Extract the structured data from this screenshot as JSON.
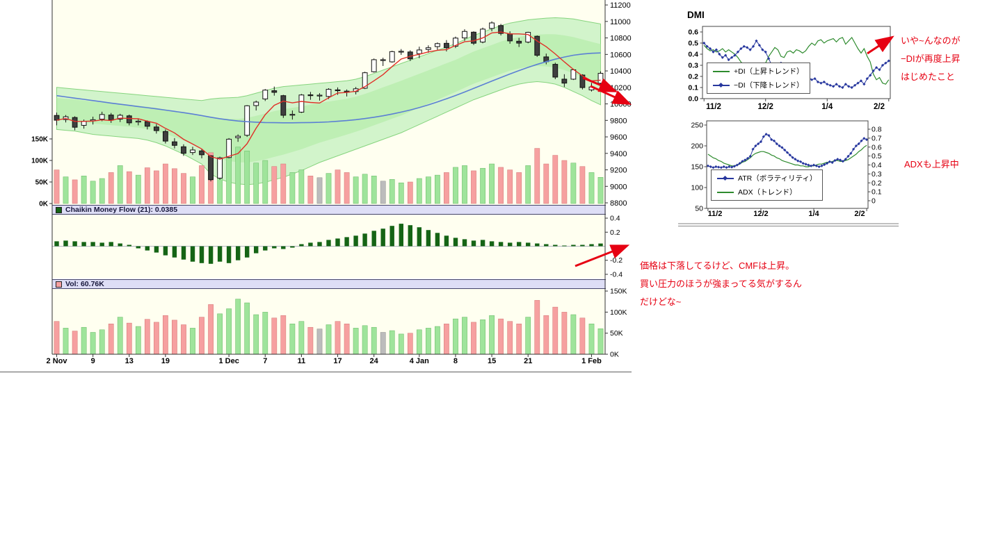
{
  "panels": {
    "cmf_header": "Chaikin Money Flow (21): 0.0385",
    "vol_header": "Vol: 60.76K"
  },
  "annotations": {
    "dmi_note": [
      "いや~んなのが",
      "−DIが再度上昇",
      "はじめたこと"
    ],
    "adx_note": "ADXも上昇中",
    "cmf_note": [
      "価格は下落してるけど、CMFは上昇。",
      "買い圧力のほうが強まってる気がするん",
      "だけどな~"
    ]
  },
  "colors": {
    "panel_bg": "#fffff0",
    "header_bg": "#dedef6",
    "up_volume": "#9fe49b",
    "down_volume": "#f6a0a0",
    "neutral_volume": "#bcbcbc",
    "cmf_bars": "#156415",
    "bollinger_fill": "#cdf3c6",
    "bollinger_inner": "#b5ecaa",
    "fast_ma": "#e03028",
    "slow_ma": "#5b7fd4",
    "plus_di": "#2e8b2e",
    "minus_di": "#27379e",
    "annotation_red": "#e60012",
    "up_candle": "#ffffff",
    "down_candle": "#3f3f3f"
  },
  "chart_data": [
    {
      "type": "candlestick",
      "name": "price-with-bollinger-and-volume",
      "y_axis": {
        "min": 8800,
        "max": 11200,
        "ticks": [
          11200,
          11000,
          10800,
          10600,
          10400,
          10200,
          10000,
          9800,
          9600,
          9400,
          9200,
          9000,
          8800
        ]
      },
      "x_ticks": [
        {
          "i": 0,
          "label": "2 Nov"
        },
        {
          "i": 4,
          "label": "9"
        },
        {
          "i": 8,
          "label": "13"
        },
        {
          "i": 12,
          "label": "19"
        },
        {
          "i": 19,
          "label": "1 Dec"
        },
        {
          "i": 23,
          "label": "7"
        },
        {
          "i": 27,
          "label": "11"
        },
        {
          "i": 31,
          "label": "17"
        },
        {
          "i": 35,
          "label": "24"
        },
        {
          "i": 40,
          "label": "4 Jan"
        },
        {
          "i": 44,
          "label": "8"
        },
        {
          "i": 48,
          "label": "15"
        },
        {
          "i": 52,
          "label": "21"
        },
        {
          "i": 59,
          "label": "1 Feb"
        }
      ],
      "candles": [
        [
          9860,
          9895,
          9740,
          9802
        ],
        [
          9810,
          9865,
          9775,
          9844
        ],
        [
          9835,
          9850,
          9680,
          9717
        ],
        [
          9740,
          9810,
          9700,
          9789
        ],
        [
          9795,
          9845,
          9750,
          9808
        ],
        [
          9815,
          9905,
          9790,
          9871
        ],
        [
          9865,
          9890,
          9770,
          9804
        ],
        [
          9815,
          9880,
          9780,
          9862
        ],
        [
          9855,
          9870,
          9740,
          9770
        ],
        [
          9780,
          9825,
          9740,
          9791
        ],
        [
          9785,
          9800,
          9690,
          9729
        ],
        [
          9720,
          9755,
          9640,
          9676
        ],
        [
          9665,
          9690,
          9520,
          9549
        ],
        [
          9540,
          9585,
          9460,
          9497
        ],
        [
          9480,
          9510,
          9370,
          9401
        ],
        [
          9410,
          9480,
          9380,
          9441
        ],
        [
          9430,
          9450,
          9340,
          9383
        ],
        [
          9370,
          9380,
          9060,
          9081
        ],
        [
          9100,
          9360,
          9080,
          9346
        ],
        [
          9350,
          9585,
          9340,
          9572
        ],
        [
          9590,
          9630,
          9540,
          9608
        ],
        [
          9620,
          9985,
          9600,
          9977
        ],
        [
          9980,
          10040,
          9920,
          10022
        ],
        [
          10060,
          10180,
          10035,
          10167
        ],
        [
          10160,
          10210,
          10100,
          10140
        ],
        [
          10100,
          10110,
          9830,
          9862
        ],
        [
          9870,
          9920,
          9810,
          9873
        ],
        [
          9900,
          10120,
          9890,
          10108
        ],
        [
          10110,
          10145,
          10050,
          10106
        ],
        [
          10100,
          10130,
          10040,
          10106
        ],
        [
          10090,
          10190,
          10060,
          10177
        ],
        [
          10170,
          10200,
          10110,
          10163
        ],
        [
          10155,
          10175,
          10090,
          10142
        ],
        [
          10150,
          10205,
          10115,
          10183
        ],
        [
          10190,
          10390,
          10180,
          10378
        ],
        [
          10390,
          10550,
          10380,
          10536
        ],
        [
          10530,
          10560,
          10460,
          10536
        ],
        [
          10510,
          10645,
          10500,
          10634
        ],
        [
          10635,
          10665,
          10595,
          10638
        ],
        [
          10630,
          10650,
          10520,
          10546
        ],
        [
          10609,
          10694,
          10555,
          10654
        ],
        [
          10660,
          10710,
          10620,
          10681
        ],
        [
          10695,
          10745,
          10655,
          10731
        ],
        [
          10735,
          10774,
          10636,
          10681
        ],
        [
          10700,
          10816,
          10677,
          10798
        ],
        [
          10800,
          10905,
          10765,
          10879
        ],
        [
          10870,
          10880,
          10715,
          10736
        ],
        [
          10750,
          10925,
          10735,
          10907
        ],
        [
          10915,
          11001,
          10880,
          10982
        ],
        [
          10950,
          10970,
          10830,
          10855
        ],
        [
          10850,
          10880,
          10730,
          10764
        ],
        [
          10760,
          10800,
          10690,
          10737
        ],
        [
          10750,
          10875,
          10735,
          10868
        ],
        [
          10820,
          10830,
          10570,
          10590
        ],
        [
          10570,
          10610,
          10480,
          10512
        ],
        [
          10480,
          10500,
          10300,
          10325
        ],
        [
          10300,
          10360,
          10205,
          10252
        ],
        [
          10300,
          10425,
          10290,
          10414
        ],
        [
          10350,
          10360,
          10175,
          10198
        ],
        [
          10170,
          10255,
          10150,
          10205
        ],
        [
          10250,
          10395,
          10240,
          10371
        ]
      ],
      "bollinger_upper": [
        10200,
        10190,
        10180,
        10170,
        10160,
        10150,
        10140,
        10130,
        10120,
        10110,
        10100,
        10090,
        10080,
        10070,
        10060,
        10050,
        10040,
        10060,
        10070,
        10075,
        10080,
        10100,
        10130,
        10160,
        10190,
        10210,
        10220,
        10230,
        10240,
        10250,
        10260,
        10270,
        10280,
        10300,
        10330,
        10370,
        10410,
        10450,
        10490,
        10530,
        10570,
        10610,
        10650,
        10690,
        10730,
        10780,
        10830,
        10870,
        10910,
        10950,
        10980,
        11000,
        11020,
        11030,
        11040,
        11045,
        11040,
        11030,
        11010,
        10990,
        10970
      ],
      "bollinger_lower": [
        9690,
        9680,
        9670,
        9650,
        9630,
        9620,
        9610,
        9600,
        9590,
        9580,
        9560,
        9530,
        9490,
        9440,
        9390,
        9330,
        9270,
        9150,
        9090,
        9050,
        9030,
        9020,
        9030,
        9050,
        9080,
        9110,
        9150,
        9190,
        9240,
        9290,
        9330,
        9370,
        9410,
        9450,
        9490,
        9530,
        9570,
        9610,
        9650,
        9700,
        9750,
        9800,
        9850,
        9900,
        9950,
        10000,
        10050,
        10090,
        10130,
        10170,
        10210,
        10240,
        10260,
        10270,
        10260,
        10240,
        10200,
        10150,
        10100,
        10040,
        9990
      ],
      "ma_slow": [
        10100,
        10085,
        10070,
        10055,
        10040,
        10025,
        10010,
        9996,
        9982,
        9968,
        9954,
        9940,
        9925,
        9910,
        9894,
        9877,
        9858,
        9838,
        9820,
        9805,
        9793,
        9784,
        9778,
        9774,
        9772,
        9771,
        9771,
        9772,
        9774,
        9777,
        9782,
        9789,
        9798,
        9809,
        9822,
        9838,
        9856,
        9877,
        9900,
        9926,
        9955,
        9988,
        10024,
        10062,
        10102,
        10144,
        10188,
        10232,
        10276,
        10320,
        10363,
        10404,
        10443,
        10479,
        10512,
        10542,
        10568,
        10590,
        10605,
        10614,
        10618
      ],
      "ma_fast_rule": "sma5_of_close",
      "volume_overlay": {
        "ticks": [
          {
            "v": 150,
            "label": "150K"
          },
          {
            "v": 100,
            "label": "100K"
          },
          {
            "v": 50,
            "label": "50K"
          },
          {
            "v": 0,
            "label": "0K"
          }
        ]
      }
    },
    {
      "type": "bar",
      "name": "chaikin_money_flow",
      "period": 21,
      "current": 0.0385,
      "ylim": [
        -0.45,
        0.45
      ],
      "y_ticks": [
        {
          "v": 0.4,
          "label": "0.4"
        },
        {
          "v": 0.2,
          "label": "0.2"
        },
        {
          "v": -0.2,
          "label": "-0.2"
        },
        {
          "v": -0.4,
          "label": "-0.4"
        }
      ],
      "values": [
        0.07,
        0.08,
        0.07,
        0.06,
        0.06,
        0.05,
        0.06,
        0.04,
        0.02,
        -0.03,
        -0.06,
        -0.09,
        -0.13,
        -0.16,
        -0.19,
        -0.22,
        -0.24,
        -0.25,
        -0.22,
        -0.24,
        -0.2,
        -0.16,
        -0.1,
        -0.06,
        -0.03,
        -0.04,
        -0.02,
        0.03,
        0.05,
        0.06,
        0.09,
        0.11,
        0.13,
        0.15,
        0.18,
        0.22,
        0.25,
        0.29,
        0.32,
        0.3,
        0.27,
        0.23,
        0.19,
        0.15,
        0.12,
        0.1,
        0.08,
        0.09,
        0.07,
        0.06,
        0.05,
        0.06,
        0.05,
        0.04,
        0.03,
        0.02,
        0.01,
        0.02,
        0.02,
        0.03,
        0.0385
      ]
    },
    {
      "type": "bar",
      "name": "volume",
      "current": "60.76K",
      "ylim_k": [
        0,
        155
      ],
      "y_ticks": [
        {
          "v": 150,
          "label": "150K"
        },
        {
          "v": 100,
          "label": "100K"
        },
        {
          "v": 50,
          "label": "50K"
        },
        {
          "v": 0,
          "label": "0K"
        }
      ],
      "values_k": [
        78,
        62,
        55,
        64,
        52,
        58,
        72,
        88,
        74,
        66,
        83,
        76,
        92,
        81,
        70,
        62,
        88,
        118,
        96,
        108,
        131,
        122,
        94,
        100,
        86,
        92,
        72,
        78,
        64,
        60,
        70,
        78,
        72,
        62,
        68,
        64,
        52,
        56,
        48,
        50,
        58,
        62,
        66,
        72,
        84,
        88,
        76,
        82,
        92,
        84,
        78,
        72,
        88,
        128,
        92,
        112,
        100,
        94,
        86,
        72,
        60.76
      ]
    },
    {
      "type": "line",
      "name": "dmi",
      "title": "DMI",
      "ylim": [
        0,
        0.65
      ],
      "y_ticks": [
        0.6,
        0.5,
        0.4,
        0.3,
        0.2,
        0.1,
        0.0
      ],
      "x_ticks": [
        {
          "i": 0,
          "label": "11/2"
        },
        {
          "i": 20,
          "label": "12/2"
        },
        {
          "i": 40,
          "label": "1/4"
        },
        {
          "i": 60,
          "label": "2/2"
        }
      ],
      "series": [
        {
          "name": "+DI（上昇トレンド）",
          "color": "#2e8b2e",
          "marker": "none",
          "values": [
            0.48,
            0.45,
            0.43,
            0.44,
            0.42,
            0.43,
            0.45,
            0.42,
            0.44,
            0.42,
            0.4,
            0.37,
            0.33,
            0.3,
            0.27,
            0.28,
            0.25,
            0.2,
            0.26,
            0.3,
            0.32,
            0.38,
            0.42,
            0.46,
            0.44,
            0.38,
            0.37,
            0.42,
            0.43,
            0.41,
            0.44,
            0.43,
            0.41,
            0.43,
            0.47,
            0.5,
            0.48,
            0.52,
            0.53,
            0.5,
            0.52,
            0.53,
            0.54,
            0.51,
            0.54,
            0.55,
            0.49,
            0.52,
            0.55,
            0.5,
            0.45,
            0.41,
            0.45,
            0.38,
            0.33,
            0.22,
            0.17,
            0.19,
            0.14,
            0.13,
            0.17
          ]
        },
        {
          "name": "−DI（下降トレンド）",
          "color": "#27379e",
          "marker": "diamond",
          "values": [
            0.5,
            0.47,
            0.45,
            0.42,
            0.44,
            0.4,
            0.37,
            0.39,
            0.35,
            0.37,
            0.39,
            0.42,
            0.45,
            0.47,
            0.46,
            0.44,
            0.47,
            0.52,
            0.48,
            0.44,
            0.42,
            0.36,
            0.3,
            0.26,
            0.28,
            0.32,
            0.3,
            0.25,
            0.24,
            0.25,
            0.22,
            0.23,
            0.24,
            0.22,
            0.19,
            0.17,
            0.18,
            0.15,
            0.14,
            0.15,
            0.13,
            0.12,
            0.11,
            0.13,
            0.11,
            0.1,
            0.13,
            0.11,
            0.1,
            0.12,
            0.14,
            0.16,
            0.13,
            0.18,
            0.21,
            0.25,
            0.28,
            0.26,
            0.3,
            0.32,
            0.34
          ]
        }
      ]
    },
    {
      "type": "line",
      "name": "atr_adx",
      "left_axis": {
        "ticks": [
          250,
          200,
          150,
          100,
          50
        ],
        "lim": [
          50,
          260
        ]
      },
      "right_axis": {
        "ticks": [
          0.8,
          0.7,
          0.6,
          0.5,
          0.4,
          0.3,
          0.2,
          0.1,
          0
        ],
        "lim": [
          0,
          0.8
        ]
      },
      "x_ticks": [
        {
          "i": 0,
          "label": "11/2"
        },
        {
          "i": 20,
          "label": "12/2"
        },
        {
          "i": 40,
          "label": "1/4"
        },
        {
          "i": 60,
          "label": "2/2"
        }
      ],
      "series": [
        {
          "name": "ATR（ボラティリティ）",
          "axis": "left",
          "color": "#27379e",
          "marker": "diamond",
          "values": [
            152,
            150,
            148,
            150,
            149,
            148,
            150,
            148,
            150,
            149,
            151,
            154,
            158,
            163,
            166,
            170,
            175,
            192,
            200,
            205,
            210,
            222,
            228,
            225,
            215,
            212,
            205,
            200,
            196,
            190,
            184,
            178,
            172,
            168,
            164,
            162,
            158,
            156,
            154,
            152,
            154,
            152,
            150,
            152,
            155,
            158,
            162,
            160,
            165,
            168,
            166,
            163,
            168,
            175,
            182,
            192,
            200,
            205,
            212,
            218,
            215
          ]
        },
        {
          "name": "ADX（トレンド）",
          "axis": "right",
          "color": "#2e8b2e",
          "marker": "none",
          "values": [
            0.52,
            0.5,
            0.48,
            0.47,
            0.45,
            0.44,
            0.42,
            0.41,
            0.4,
            0.39,
            0.39,
            0.4,
            0.41,
            0.43,
            0.44,
            0.46,
            0.48,
            0.51,
            0.53,
            0.54,
            0.55,
            0.55,
            0.54,
            0.53,
            0.51,
            0.5,
            0.48,
            0.47,
            0.45,
            0.44,
            0.43,
            0.42,
            0.41,
            0.4,
            0.4,
            0.39,
            0.39,
            0.38,
            0.38,
            0.39,
            0.39,
            0.4,
            0.41,
            0.41,
            0.42,
            0.43,
            0.43,
            0.44,
            0.45,
            0.45,
            0.44,
            0.44,
            0.45,
            0.46,
            0.48,
            0.5,
            0.52,
            0.55,
            0.57,
            0.6,
            0.62
          ]
        }
      ]
    }
  ]
}
